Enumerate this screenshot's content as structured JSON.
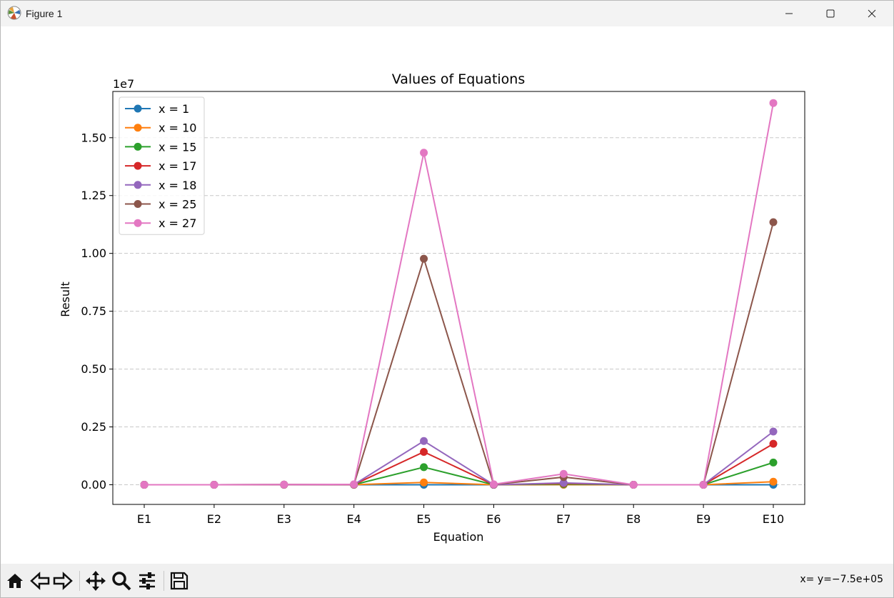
{
  "window": {
    "title": "Figure 1",
    "icons": {
      "app": "matplotlib-icon",
      "minimize": "minimize-icon",
      "maximize": "maximize-icon",
      "close": "close-icon"
    }
  },
  "toolbar": {
    "buttons": [
      "home-icon",
      "back-icon",
      "forward-icon",
      "pan-icon",
      "zoom-icon",
      "configure-subplots-icon",
      "save-icon"
    ],
    "coordinate_readout": "x= y=−7.5e+05"
  },
  "chart_data": {
    "type": "line",
    "title": "Values of Equations",
    "xlabel": "Equation",
    "ylabel": "Result",
    "y_offset_label": "1e7",
    "categories": [
      "E1",
      "E2",
      "E3",
      "E4",
      "E5",
      "E6",
      "E7",
      "E8",
      "E9",
      "E10"
    ],
    "ylim": [
      -0.085,
      1.7
    ],
    "yticks": [
      0.0,
      0.25,
      0.5,
      0.75,
      1.0,
      1.25,
      1.5
    ],
    "ytick_labels": [
      "0.00",
      "0.25",
      "0.50",
      "0.75",
      "1.00",
      "1.25",
      "1.50"
    ],
    "grid": "y-dashed",
    "legend_position": "top-left",
    "series": [
      {
        "name": "x = 1",
        "color": "#1f77b4",
        "values": [
          0,
          0,
          0,
          0,
          1e-06,
          0,
          0,
          0,
          0,
          1e-06
        ]
      },
      {
        "name": "x = 10",
        "color": "#ff7f0e",
        "values": [
          0,
          0,
          0.0001,
          0.0001,
          0.01,
          0,
          0.0005,
          0,
          0,
          0.013
        ]
      },
      {
        "name": "x = 15",
        "color": "#2ca02c",
        "values": [
          0,
          0,
          0.0002,
          0.0003,
          0.076,
          0,
          0.003,
          0,
          0,
          0.096
        ]
      },
      {
        "name": "x = 17",
        "color": "#d62728",
        "values": [
          0,
          0,
          0.0003,
          0.0005,
          0.142,
          0,
          0.006,
          0,
          0,
          0.177
        ]
      },
      {
        "name": "x = 18",
        "color": "#9467bd",
        "values": [
          0,
          0,
          0.0003,
          0.0006,
          0.189,
          0,
          0.008,
          0,
          0,
          0.23
        ]
      },
      {
        "name": "x = 25",
        "color": "#8c564b",
        "values": [
          0,
          0,
          0.0006,
          0.0016,
          0.977,
          0.001,
          0.033,
          0,
          0,
          1.135
        ]
      },
      {
        "name": "x = 27",
        "color": "#e377c2",
        "values": [
          0,
          0.0001,
          0.0007,
          0.002,
          1.435,
          0.002,
          0.047,
          0,
          0,
          1.65
        ]
      }
    ]
  }
}
